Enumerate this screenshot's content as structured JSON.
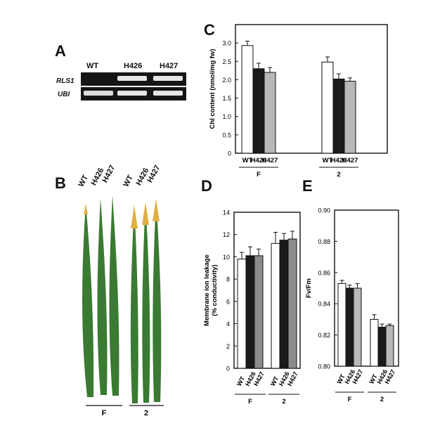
{
  "panels": {
    "a": {
      "letter": "A",
      "lanes": [
        "WT",
        "H426",
        "H427"
      ],
      "rows": [
        "RLS1",
        "UBI"
      ]
    },
    "b": {
      "letter": "B",
      "leaf_labels_group1": [
        "WT",
        "H426",
        "H427"
      ],
      "leaf_labels_group2": [
        "WT",
        "H426",
        "H427"
      ],
      "groups": [
        "F",
        "2"
      ]
    },
    "c": {
      "letter": "C"
    },
    "d": {
      "letter": "D"
    },
    "e": {
      "letter": "E"
    }
  },
  "colors": {
    "wt": "#ffffff",
    "h426": "#1a1a1a",
    "h427": "#b8b8b8",
    "h427_d": "#8c8c8c",
    "leaf": "#3a7a32",
    "leaf_tip": "#e0b040"
  },
  "chart_data": [
    {
      "id": "C",
      "type": "bar",
      "ylabel": "Chl content (nmol/mg fw)",
      "ylim": [
        0,
        3.5
      ],
      "yticks": [
        "0",
        "0.5",
        "1.0",
        "1.5",
        "2.0",
        "2.5",
        "3.0"
      ],
      "group_labels": [
        "F",
        "2"
      ],
      "categories": [
        "WT",
        "H426",
        "H427"
      ],
      "series_groups": [
        {
          "group": "F",
          "values": [
            2.93,
            2.3,
            2.2
          ],
          "errors": [
            0.12,
            0.15,
            0.13
          ]
        },
        {
          "group": "2",
          "values": [
            2.48,
            2.02,
            1.96
          ],
          "errors": [
            0.14,
            0.14,
            0.09
          ]
        }
      ]
    },
    {
      "id": "D",
      "type": "bar",
      "ylabel": "Membrane ion leakage",
      "ylabel2": "(% conductivity)",
      "ylim": [
        0,
        14
      ],
      "yticks": [
        "0",
        "2",
        "4",
        "6",
        "8",
        "10",
        "12",
        "14"
      ],
      "group_labels": [
        "F",
        "2"
      ],
      "categories": [
        "WT",
        "H426",
        "H427"
      ],
      "series_groups": [
        {
          "group": "F",
          "values": [
            9.8,
            10.1,
            10.1
          ],
          "errors": [
            0.6,
            0.8,
            0.6
          ]
        },
        {
          "group": "2",
          "values": [
            11.2,
            11.5,
            11.6
          ],
          "errors": [
            1.0,
            0.6,
            0.7
          ]
        }
      ]
    },
    {
      "id": "E",
      "type": "bar",
      "ylabel": "Fv/Fm",
      "ylim": [
        0.8,
        0.9
      ],
      "yticks": [
        "0.80",
        "0.82",
        "0.84",
        "0.86",
        "0.88",
        "0.90"
      ],
      "group_labels": [
        "F",
        "2"
      ],
      "categories": [
        "WT",
        "H426",
        "H427"
      ],
      "series_groups": [
        {
          "group": "F",
          "values": [
            0.853,
            0.85,
            0.85
          ],
          "errors": [
            0.002,
            0.002,
            0.003
          ]
        },
        {
          "group": "2",
          "values": [
            0.83,
            0.825,
            0.826
          ],
          "errors": [
            0.003,
            0.002,
            0.001
          ]
        }
      ]
    }
  ]
}
